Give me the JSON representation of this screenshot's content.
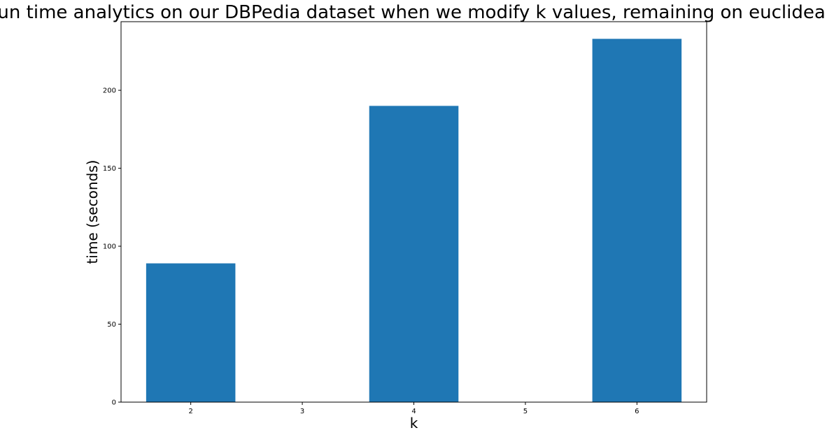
{
  "chart_data": {
    "type": "bar",
    "title": "run time analytics on our DBPedia dataset when we modify k values, remaining on euclidean",
    "xlabel": "k",
    "ylabel": "time (seconds)",
    "x_ticks": [
      "2",
      "3",
      "4",
      "5",
      "6"
    ],
    "xlim": [
      1.375,
      6.625
    ],
    "y_ticks": [
      "0",
      "50",
      "100",
      "150",
      "200"
    ],
    "ylim": [
      0,
      244
    ],
    "grid": false,
    "bar_color": "#1f77b4",
    "bars": [
      {
        "x": 2,
        "value": 89
      },
      {
        "x": 4,
        "value": 190
      },
      {
        "x": 6,
        "value": 233
      }
    ],
    "bar_width": 0.8
  }
}
